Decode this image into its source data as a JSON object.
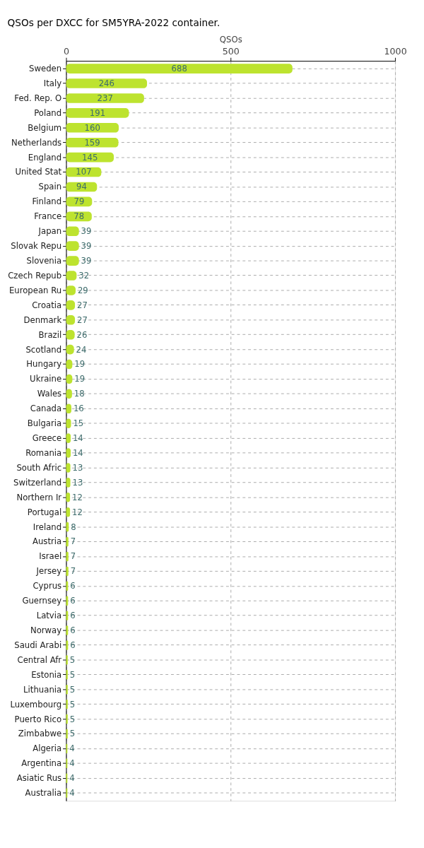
{
  "chart_data": {
    "type": "bar",
    "orientation": "horizontal",
    "title": "QSOs per DXCC for SM5YRA-2022 container.",
    "xlabel": "QSOs",
    "categories": [
      "Sweden",
      "Italy",
      "Fed. Rep. O",
      "Poland",
      "Belgium",
      "Netherlands",
      "England",
      "United Stat",
      "Spain",
      "Finland",
      "France",
      "Japan",
      "Slovak Repu",
      "Slovenia",
      "Czech Repub",
      "European Ru",
      "Croatia",
      "Denmark",
      "Brazil",
      "Scotland",
      "Hungary",
      "Ukraine",
      "Wales",
      "Canada",
      "Bulgaria",
      "Greece",
      "Romania",
      "South Afric",
      "Switzerland",
      "Northern Ir",
      "Portugal",
      "Ireland",
      "Austria",
      "Israel",
      "Jersey",
      "Cyprus",
      "Guernsey",
      "Latvia",
      "Norway",
      "Saudi Arabi",
      "Central Afr",
      "Estonia",
      "Lithuania",
      "Luxembourg",
      "Puerto Rico",
      "Zimbabwe",
      "Algeria",
      "Argentina",
      "Asiatic Rus",
      "Australia"
    ],
    "values": [
      688,
      246,
      237,
      191,
      160,
      159,
      145,
      107,
      94,
      79,
      78,
      39,
      39,
      39,
      32,
      29,
      27,
      27,
      26,
      24,
      19,
      19,
      18,
      16,
      15,
      14,
      14,
      13,
      13,
      12,
      12,
      8,
      7,
      7,
      7,
      6,
      6,
      6,
      6,
      6,
      5,
      5,
      5,
      5,
      5,
      5,
      4,
      4,
      4,
      4
    ],
    "color": "#bde32f",
    "xlim": [
      0,
      1000
    ],
    "xticks": [
      0,
      500,
      1000
    ],
    "grid": true,
    "data_labels": true
  }
}
